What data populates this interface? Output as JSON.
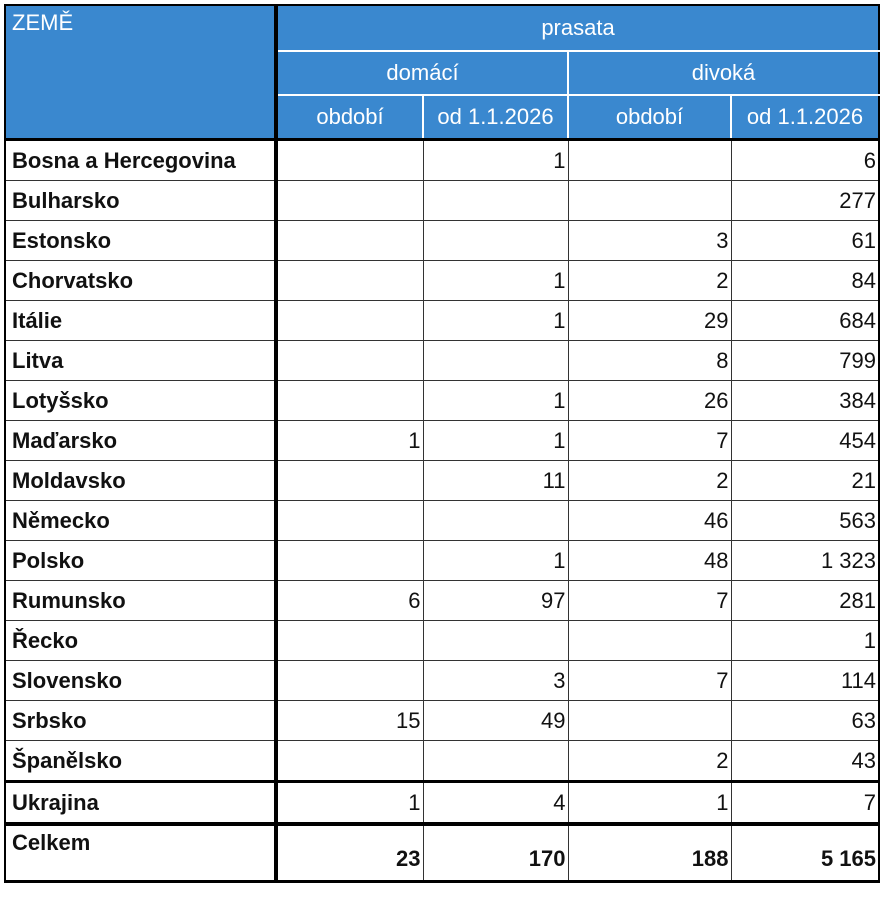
{
  "header": {
    "country_label": "ZEMĚ",
    "group_label": "prasata",
    "sub_domestic": "domácí",
    "sub_wild": "divoká",
    "col_period_1": "období",
    "col_since_1": "od 1.1.2026",
    "col_period_2": "období",
    "col_since_2": "od 1.1.2026"
  },
  "rows": [
    {
      "country": "Bosna a Hercegovina",
      "dom_period": "",
      "dom_since": "1",
      "wild_period": "",
      "wild_since": "6"
    },
    {
      "country": "Bulharsko",
      "dom_period": "",
      "dom_since": "",
      "wild_period": "",
      "wild_since": "277"
    },
    {
      "country": "Estonsko",
      "dom_period": "",
      "dom_since": "",
      "wild_period": "3",
      "wild_since": "61"
    },
    {
      "country": "Chorvatsko",
      "dom_period": "",
      "dom_since": "1",
      "wild_period": "2",
      "wild_since": "84"
    },
    {
      "country": "Itálie",
      "dom_period": "",
      "dom_since": "1",
      "wild_period": "29",
      "wild_since": "684"
    },
    {
      "country": "Litva",
      "dom_period": "",
      "dom_since": "",
      "wild_period": "8",
      "wild_since": "799"
    },
    {
      "country": "Lotyšsko",
      "dom_period": "",
      "dom_since": "1",
      "wild_period": "26",
      "wild_since": "384"
    },
    {
      "country": "Maďarsko",
      "dom_period": "1",
      "dom_since": "1",
      "wild_period": "7",
      "wild_since": "454"
    },
    {
      "country": "Moldavsko",
      "dom_period": "",
      "dom_since": "11",
      "wild_period": "2",
      "wild_since": "21"
    },
    {
      "country": "Německo",
      "dom_period": "",
      "dom_since": "",
      "wild_period": "46",
      "wild_since": "563"
    },
    {
      "country": "Polsko",
      "dom_period": "",
      "dom_since": "1",
      "wild_period": "48",
      "wild_since": "1 323"
    },
    {
      "country": "Rumunsko",
      "dom_period": "6",
      "dom_since": "97",
      "wild_period": "7",
      "wild_since": "281"
    },
    {
      "country": "Řecko",
      "dom_period": "",
      "dom_since": "",
      "wild_period": "",
      "wild_since": "1"
    },
    {
      "country": "Slovensko",
      "dom_period": "",
      "dom_since": "3",
      "wild_period": "7",
      "wild_since": "114"
    },
    {
      "country": "Srbsko",
      "dom_period": "15",
      "dom_since": "49",
      "wild_period": "",
      "wild_since": "63"
    },
    {
      "country": "Španělsko",
      "dom_period": "",
      "dom_since": "",
      "wild_period": "2",
      "wild_since": "43"
    },
    {
      "country": "Ukrajina",
      "dom_period": "1",
      "dom_since": "4",
      "wild_period": "1",
      "wild_since": "7"
    }
  ],
  "total": {
    "label": "Celkem",
    "dom_period": "23",
    "dom_since": "170",
    "wild_period": "188",
    "wild_since": "5 165"
  }
}
